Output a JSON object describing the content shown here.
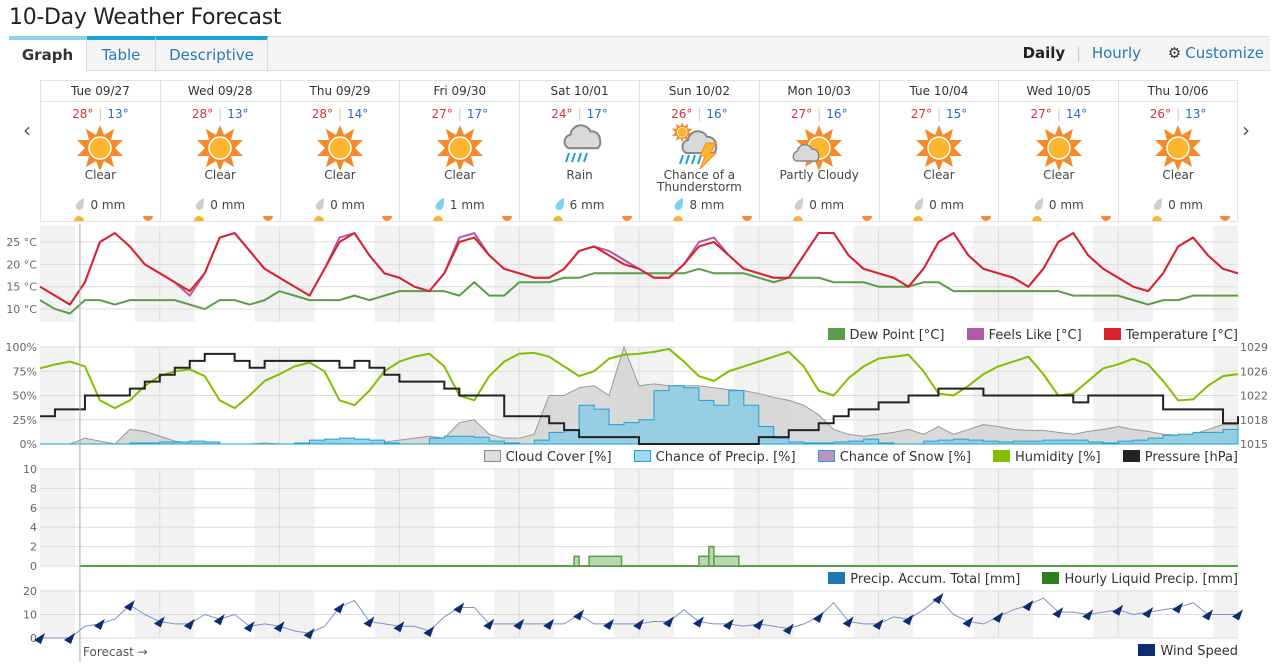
{
  "title": "10-Day Weather Forecast",
  "tabs": [
    {
      "label": "Graph"
    },
    {
      "label": "Table"
    },
    {
      "label": "Descriptive"
    }
  ],
  "toolbar": {
    "daily": "Daily",
    "hourly": "Hourly",
    "customize": "Customize"
  },
  "days": [
    {
      "name": "Tue 09/27",
      "hi": "28°",
      "lo": "13°",
      "icon": "clear",
      "cond": "Clear",
      "precip": "0 mm",
      "wet": false
    },
    {
      "name": "Wed 09/28",
      "hi": "28°",
      "lo": "13°",
      "icon": "clear",
      "cond": "Clear",
      "precip": "0 mm",
      "wet": false
    },
    {
      "name": "Thu 09/29",
      "hi": "28°",
      "lo": "14°",
      "icon": "clear",
      "cond": "Clear",
      "precip": "0 mm",
      "wet": false
    },
    {
      "name": "Fri 09/30",
      "hi": "27°",
      "lo": "17°",
      "icon": "clear",
      "cond": "Clear",
      "precip": "1 mm",
      "wet": true
    },
    {
      "name": "Sat 10/01",
      "hi": "24°",
      "lo": "17°",
      "icon": "rain",
      "cond": "Rain",
      "precip": "6 mm",
      "wet": true
    },
    {
      "name": "Sun 10/02",
      "hi": "26°",
      "lo": "16°",
      "icon": "thunderstorm",
      "cond": "Chance of a Thunderstorm",
      "precip": "8 mm",
      "wet": true
    },
    {
      "name": "Mon 10/03",
      "hi": "27°",
      "lo": "16°",
      "icon": "partly-cloudy",
      "cond": "Partly Cloudy",
      "precip": "0 mm",
      "wet": false
    },
    {
      "name": "Tue 10/04",
      "hi": "27°",
      "lo": "15°",
      "icon": "clear",
      "cond": "Clear",
      "precip": "0 mm",
      "wet": false
    },
    {
      "name": "Wed 10/05",
      "hi": "27°",
      "lo": "14°",
      "icon": "clear",
      "cond": "Clear",
      "precip": "0 mm",
      "wet": false
    },
    {
      "name": "Thu 10/06",
      "hi": "26°",
      "lo": "13°",
      "icon": "clear",
      "cond": "Clear",
      "precip": "0 mm",
      "wet": false
    }
  ],
  "forecast_label": "Forecast →",
  "colors": {
    "dew": "#5a9e4b",
    "feels": "#b05aa8",
    "temp": "#d9232e",
    "cloud": "#d4d4d4",
    "precip": "#5bc0e6",
    "snow": "#c48fc0",
    "humidity": "#82bf00",
    "pressure": "#222222",
    "accum": "#1a7ab0",
    "liquid": "#2e7d1f",
    "wind": "#0b2e73"
  },
  "chart_data": {
    "type": "line",
    "x_unit": "hours from Tue 09/27 00:00",
    "step_hours": 3,
    "forecast_start_hour": 8,
    "panels": [
      {
        "id": "temperature",
        "yticks": [
          "25 °C",
          "20 °C",
          "15 °C",
          "10 °C"
        ],
        "ytick_values": [
          25,
          20,
          15,
          10
        ],
        "legend": [
          "Dew Point [°C]",
          "Feels Like [°C]",
          "Temperature [°C]"
        ],
        "temperature": [
          15,
          13,
          11,
          16,
          25,
          27,
          24,
          20,
          18,
          16,
          14,
          18,
          26,
          27,
          23,
          19,
          17,
          15,
          13,
          19,
          25,
          27,
          22,
          18,
          17,
          15,
          14,
          18,
          25,
          26,
          22,
          19,
          18,
          17,
          17,
          19,
          23,
          24,
          22,
          20,
          19,
          17,
          17,
          20,
          24,
          25,
          22,
          19,
          18,
          17,
          17,
          22,
          27,
          27,
          22,
          19,
          18,
          17,
          15,
          19,
          25,
          27,
          22,
          19,
          18,
          17,
          15,
          19,
          25,
          27,
          22,
          19,
          17,
          15,
          14,
          18,
          24,
          26,
          22,
          19,
          18
        ],
        "feels_like": [
          15,
          13,
          11,
          16,
          25,
          27,
          24,
          20,
          18,
          16,
          13,
          18,
          26,
          27,
          23,
          19,
          17,
          15,
          13,
          19,
          26,
          27,
          22,
          18,
          17,
          15,
          14,
          18,
          26,
          27,
          22,
          19,
          18,
          17,
          17,
          19,
          23,
          24,
          23,
          21,
          19,
          17,
          17,
          20,
          25,
          26,
          22,
          19,
          18,
          17,
          17,
          22,
          27,
          27,
          22,
          19,
          18,
          17,
          15,
          19,
          25,
          27,
          22,
          19,
          18,
          17,
          15,
          19,
          25,
          27,
          22,
          19,
          17,
          15,
          14,
          18,
          24,
          26,
          22,
          19,
          18
        ],
        "dew_point": [
          12,
          10,
          9,
          12,
          12,
          11,
          12,
          12,
          12,
          12,
          11,
          10,
          12,
          12,
          11,
          12,
          14,
          13,
          12,
          12,
          12,
          13,
          12,
          13,
          14,
          14,
          14,
          14,
          13,
          16,
          13,
          13,
          16,
          16,
          16,
          17,
          17,
          18,
          18,
          18,
          18,
          18,
          18,
          18,
          19,
          18,
          18,
          18,
          17,
          16,
          17,
          17,
          17,
          16,
          16,
          16,
          15,
          15,
          15,
          16,
          16,
          14,
          14,
          14,
          14,
          14,
          14,
          14,
          14,
          13,
          13,
          13,
          13,
          12,
          11,
          12,
          12,
          13,
          13,
          13,
          13
        ]
      },
      {
        "id": "atmosphere",
        "yticks": [
          "100%",
          "75%",
          "50%",
          "25%",
          "0%"
        ],
        "yticks_right": [
          "1029",
          "1026",
          "1022",
          "1018",
          "1015"
        ],
        "legend": [
          "Cloud Cover [%]",
          "Chance of Precip. [%]",
          "Chance of Snow [%]",
          "Humidity [%]",
          "Pressure [hPa]"
        ],
        "cloud_cover": [
          0,
          0,
          0,
          6,
          3,
          0,
          15,
          13,
          8,
          3,
          1,
          1,
          0,
          0,
          0,
          1,
          0,
          0,
          0,
          2,
          1,
          0,
          1,
          2,
          4,
          6,
          8,
          6,
          22,
          25,
          10,
          6,
          6,
          10,
          50,
          50,
          58,
          60,
          50,
          100,
          60,
          62,
          60,
          60,
          60,
          58,
          56,
          55,
          52,
          48,
          45,
          40,
          30,
          15,
          10,
          8,
          10,
          12,
          15,
          10,
          18,
          10,
          15,
          20,
          18,
          15,
          14,
          14,
          12,
          10,
          13,
          15,
          18,
          15,
          13,
          10,
          9,
          10,
          15,
          20,
          20
        ],
        "precip_chance": [
          0,
          0,
          0,
          0,
          0,
          0,
          1,
          1,
          2,
          2,
          3,
          2,
          0,
          0,
          0,
          0,
          0,
          1,
          4,
          5,
          6,
          5,
          4,
          1,
          0,
          0,
          6,
          8,
          8,
          7,
          3,
          1,
          0,
          4,
          12,
          15,
          40,
          36,
          20,
          22,
          25,
          55,
          60,
          58,
          45,
          40,
          55,
          40,
          18,
          6,
          2,
          1,
          1,
          2,
          3,
          5,
          1,
          0,
          0,
          3,
          4,
          5,
          4,
          3,
          2,
          3,
          3,
          4,
          4,
          4,
          2,
          1,
          3,
          4,
          6,
          9,
          10,
          12,
          12,
          15,
          17
        ],
        "humidity": [
          78,
          82,
          85,
          80,
          45,
          37,
          45,
          60,
          70,
          75,
          77,
          70,
          45,
          37,
          50,
          65,
          72,
          80,
          84,
          75,
          45,
          40,
          55,
          75,
          85,
          90,
          93,
          80,
          50,
          45,
          70,
          85,
          93,
          94,
          90,
          80,
          70,
          75,
          88,
          92,
          93,
          95,
          98,
          85,
          70,
          65,
          75,
          80,
          85,
          90,
          95,
          80,
          55,
          50,
          68,
          80,
          88,
          90,
          92,
          75,
          52,
          50,
          60,
          72,
          80,
          85,
          90,
          72,
          50,
          52,
          65,
          78,
          82,
          88,
          82,
          65,
          45,
          46,
          60,
          70,
          72
        ],
        "pressure": [
          1019,
          1020,
          1020,
          1022,
          1022,
          1022,
          1023,
          1024,
          1025,
          1026,
          1027,
          1028,
          1028,
          1027,
          1026,
          1027,
          1027,
          1027,
          1027,
          1027,
          1026,
          1027,
          1026,
          1025,
          1024,
          1024,
          1024,
          1023,
          1022,
          1022,
          1022,
          1019,
          1019,
          1019,
          1018,
          1017,
          1016,
          1016,
          1016,
          1016,
          1015,
          1015,
          1015,
          1015,
          1015,
          1015,
          1015,
          1015,
          1016,
          1016,
          1017,
          1017,
          1018,
          1019,
          1020,
          1020,
          1021,
          1021,
          1022,
          1022,
          1023,
          1023,
          1023,
          1022,
          1022,
          1022,
          1022,
          1022,
          1022,
          1021,
          1022,
          1022,
          1022,
          1022,
          1022,
          1020,
          1020,
          1020,
          1020,
          1018,
          1019
        ],
        "pressure_range": [
          1015,
          1029
        ]
      },
      {
        "id": "precipitation",
        "yticks": [
          "10",
          "8",
          "6",
          "4",
          "2",
          "0"
        ],
        "ytick_values": [
          10,
          8,
          6,
          4,
          2,
          0
        ],
        "legend": [
          "Precip. Accum. Total [mm]",
          "Hourly Liquid Precip. [mm]"
        ],
        "hourly_liquid": [
          {
            "from": 107,
            "to": 108,
            "mm": 1
          },
          {
            "from": 110,
            "to": 116.5,
            "mm": 1
          },
          {
            "from": 132,
            "to": 134,
            "mm": 1
          },
          {
            "from": 134,
            "to": 135,
            "mm": 2
          },
          {
            "from": 135,
            "to": 140,
            "mm": 1
          }
        ]
      },
      {
        "id": "wind",
        "yticks": [
          "20",
          "10",
          "0"
        ],
        "ytick_values": [
          20,
          10,
          0
        ],
        "legend": [
          "Wind Speed"
        ],
        "wind_speed": [
          0,
          0,
          0,
          5,
          6,
          8,
          14,
          10,
          7,
          6,
          6,
          10,
          8,
          10,
          5,
          6,
          5,
          3,
          2,
          5,
          13,
          16,
          7,
          6,
          5,
          5,
          3,
          9,
          13,
          13,
          6,
          6,
          6,
          6,
          6,
          6,
          10,
          6,
          6,
          6,
          6,
          7,
          7,
          12,
          7,
          6,
          6,
          5,
          6,
          5,
          4,
          6,
          9,
          15,
          7,
          6,
          6,
          9,
          8,
          12,
          17,
          10,
          7,
          6,
          9,
          12,
          14,
          17,
          11,
          11,
          10,
          11,
          12,
          10,
          11,
          12,
          13,
          15,
          10,
          10,
          10
        ]
      }
    ]
  }
}
